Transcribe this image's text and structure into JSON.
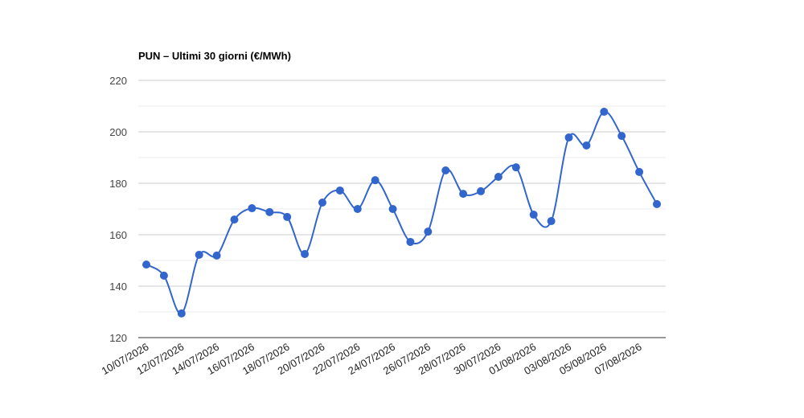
{
  "chart_data": {
    "type": "line",
    "title": "PUN – Ultimi 30 giorni (€/MWh)",
    "categories": [
      "10/07/2026",
      null,
      "12/07/2026",
      null,
      "14/07/2026",
      null,
      "16/07/2026",
      null,
      "18/07/2026",
      null,
      "20/07/2026",
      null,
      "22/07/2026",
      null,
      "24/07/2026",
      null,
      "26/07/2026",
      null,
      "28/07/2026",
      null,
      "30/07/2026",
      null,
      "01/08/2026",
      null,
      "03/08/2026",
      null,
      "05/08/2026",
      null,
      "07/08/2026",
      null
    ],
    "series": [
      {
        "color": "#3366cc",
        "values": [
          148.4,
          144.1,
          129.4,
          152.2,
          151.9,
          165.9,
          170.3,
          168.8,
          166.9,
          152.5,
          172.5,
          177.2,
          170.0,
          181.2,
          170.0,
          157.2,
          161.2,
          185.0,
          175.9,
          176.9,
          182.5,
          186.2,
          167.8,
          165.3,
          197.8,
          194.7,
          207.8,
          198.4,
          184.4,
          171.9
        ]
      }
    ],
    "ylim": [
      120,
      220
    ],
    "yticks": [
      120,
      140,
      160,
      180,
      200,
      220
    ],
    "minor_yticks": [
      130,
      150,
      170,
      190,
      210
    ],
    "grid": true
  }
}
